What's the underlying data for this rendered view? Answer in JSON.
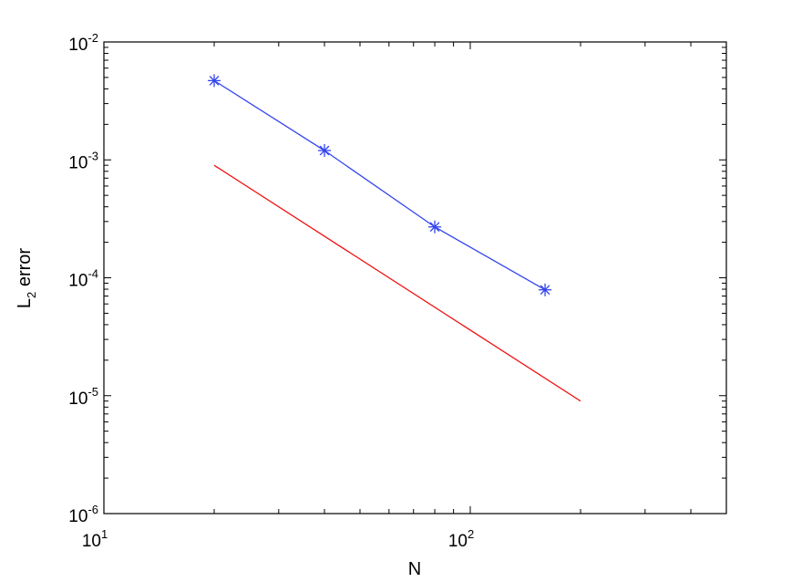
{
  "chart_data": {
    "type": "line",
    "xscale": "log",
    "yscale": "log",
    "xlim": [
      10,
      500
    ],
    "ylim": [
      1e-06,
      0.01
    ],
    "xlabel": "N",
    "ylabel_main": "L",
    "ylabel_sub": "2",
    "ylabel_rest": " error",
    "x_ticks": [
      {
        "base": "10",
        "exp": "1",
        "value": 10
      },
      {
        "base": "10",
        "exp": "2",
        "value": 100
      }
    ],
    "y_ticks": [
      {
        "base": "10",
        "exp": "-6",
        "value": 1e-06
      },
      {
        "base": "10",
        "exp": "-5",
        "value": 1e-05
      },
      {
        "base": "10",
        "exp": "-4",
        "value": 0.0001
      },
      {
        "base": "10",
        "exp": "-3",
        "value": 0.001
      },
      {
        "base": "10",
        "exp": "-2",
        "value": 0.01
      }
    ],
    "grid": false,
    "legend": "none",
    "series": [
      {
        "color": "#3344ee",
        "marker": "asterisk",
        "x": [
          20,
          40,
          80,
          160
        ],
        "y": [
          0.0047,
          0.0012,
          0.00027,
          7.9e-05
        ]
      },
      {
        "color": "#ee1111",
        "marker": "none",
        "x": [
          20,
          200
        ],
        "y": [
          0.0009,
          9e-06
        ]
      }
    ]
  }
}
